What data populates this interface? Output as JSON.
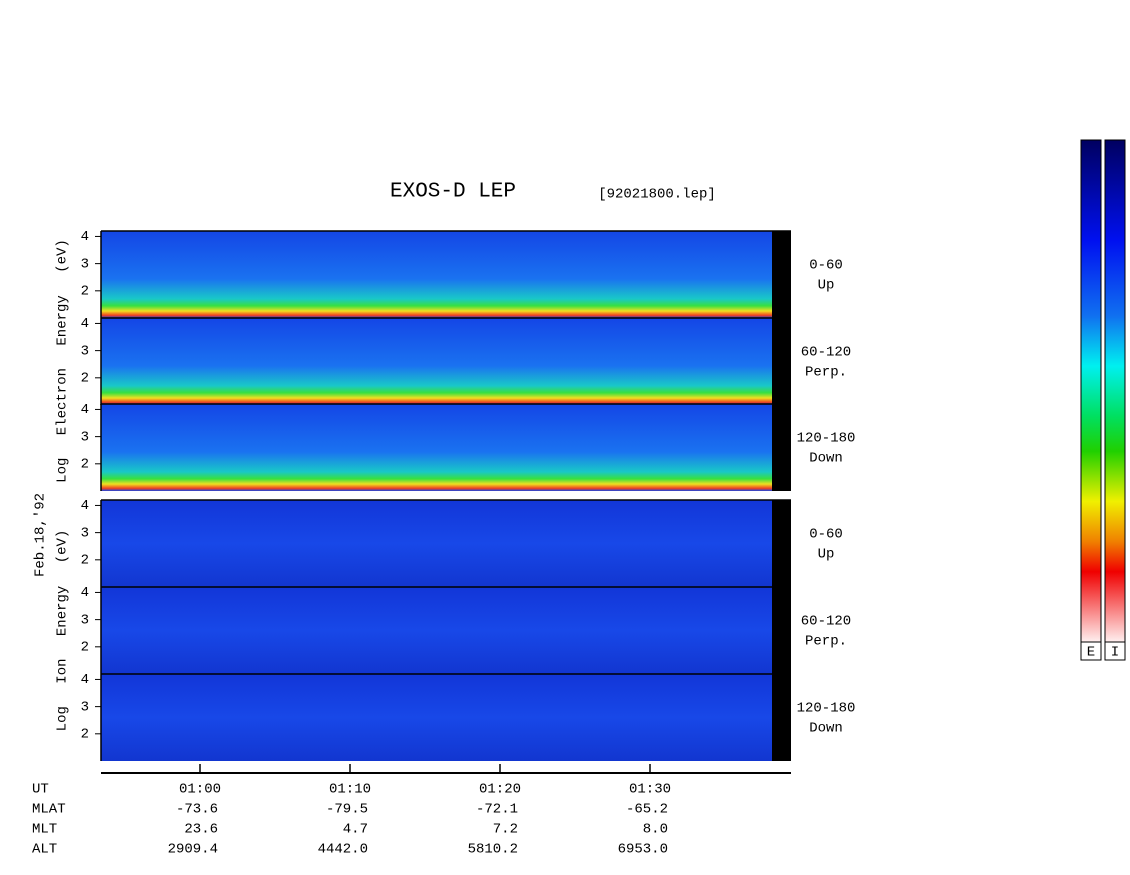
{
  "chart_data": {
    "type": "spectrogram",
    "title": "EXOS-D LEP",
    "file": "[92021800.lep]",
    "date": "Feb.18,'92",
    "ylim": [
      1,
      4.2
    ],
    "yticks": [
      2,
      3,
      4
    ],
    "xlim": [
      53.4,
      99.4
    ],
    "xticks": [
      {
        "value": 60,
        "label": "01:00"
      },
      {
        "value": 70,
        "label": "01:10"
      },
      {
        "value": 80,
        "label": "01:20"
      },
      {
        "value": 90,
        "label": "01:30"
      }
    ],
    "groups": [
      {
        "ylabel": "Log Electron Energy (eV)",
        "panels": [
          {
            "angle": "0-60",
            "dir": "Up"
          },
          {
            "angle": "60-120",
            "dir": "Perp."
          },
          {
            "angle": "120-180",
            "dir": "Down"
          }
        ]
      },
      {
        "ylabel": "Log Ion Energy (eV)",
        "panels": [
          {
            "angle": "0-60",
            "dir": "Up"
          },
          {
            "angle": "60-120",
            "dir": "Perp."
          },
          {
            "angle": "120-180",
            "dir": "Down"
          }
        ]
      }
    ],
    "ephemeris": [
      {
        "name": "UT"
      },
      {
        "name": "MLAT",
        "values": [
          "-73.6",
          "-79.5",
          "-72.1",
          "-65.2"
        ]
      },
      {
        "name": "MLT",
        "values": [
          "23.6",
          "4.7",
          "7.2",
          "8.0"
        ]
      },
      {
        "name": "ALT",
        "values": [
          "2909.4",
          "4442.0",
          "5810.2",
          "6953.0"
        ]
      }
    ],
    "colorbars": [
      "E",
      "I"
    ]
  }
}
